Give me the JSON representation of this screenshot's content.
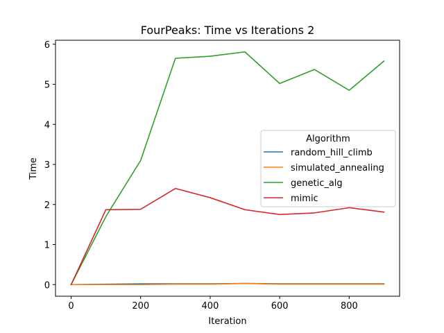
{
  "chart_data": {
    "type": "line",
    "title": "FourPeaks: Time vs Iterations 2",
    "xlabel": "Iteration",
    "ylabel": "Time",
    "x": [
      0,
      100,
      200,
      300,
      400,
      500,
      600,
      700,
      800,
      900
    ],
    "xlim": [
      -45,
      945
    ],
    "ylim": [
      -0.29,
      6.1
    ],
    "xticks": [
      0,
      200,
      400,
      600,
      800
    ],
    "yticks": [
      0,
      1,
      2,
      3,
      4,
      5,
      6
    ],
    "grid": false,
    "legend": {
      "title": "Algorithm",
      "placement": "center-right"
    },
    "series": [
      {
        "name": "random_hill_climb",
        "color": "#1f77b4",
        "values": [
          0.0,
          0.01,
          0.02,
          0.02,
          0.02,
          0.03,
          0.02,
          0.02,
          0.02,
          0.02
        ]
      },
      {
        "name": "simulated_annealing",
        "color": "#ff7f0e",
        "values": [
          0.0,
          0.0,
          0.0,
          0.01,
          0.01,
          0.03,
          0.01,
          0.01,
          0.01,
          0.01
        ]
      },
      {
        "name": "genetic_alg",
        "color": "#2ca02c",
        "values": [
          0.0,
          1.7,
          3.1,
          5.65,
          5.7,
          5.81,
          5.02,
          5.37,
          4.85,
          5.58
        ]
      },
      {
        "name": "mimic",
        "color": "#d62728",
        "values": [
          0.0,
          1.87,
          1.88,
          2.4,
          2.17,
          1.87,
          1.75,
          1.79,
          1.92,
          1.81
        ]
      }
    ]
  }
}
